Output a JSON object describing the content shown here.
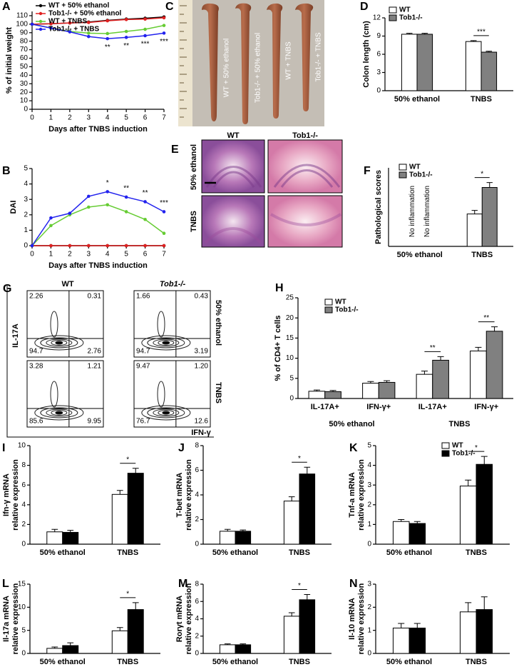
{
  "chart_data": [
    {
      "panel": "A",
      "type": "line",
      "x": [
        0,
        1,
        2,
        3,
        4,
        5,
        6,
        7
      ],
      "xlim": [
        0,
        7
      ],
      "xticks": [
        0,
        1,
        2,
        3,
        4,
        5,
        6,
        7
      ],
      "ylim": [
        0,
        115
      ],
      "yticks": [
        0,
        10,
        20,
        30,
        40,
        50,
        60,
        70,
        80,
        90,
        100,
        110
      ],
      "xlabel": "Days after TNBS induction",
      "ylabel": "% of initial weight",
      "legend": "upper left",
      "series": [
        {
          "name": "WT + 50% ethanol",
          "color": "#000000",
          "values": [
            100,
            100.5,
            101.5,
            102.5,
            104.5,
            106,
            107,
            108.5
          ]
        },
        {
          "name": "Tob1-/- + 50% ethanol",
          "color": "#e02020",
          "values": [
            100,
            100.5,
            101.5,
            102,
            104,
            105.5,
            106,
            107.5
          ]
        },
        {
          "name": "WT + TNBS",
          "color": "#66cc33",
          "values": [
            100,
            95.5,
            91.5,
            89.5,
            89,
            91.5,
            94,
            98.5
          ]
        },
        {
          "name": "Tob1-/- + TNBS",
          "color": "#2222ee",
          "values": [
            100,
            95.5,
            91,
            85.5,
            83,
            84.5,
            86.5,
            89.5
          ]
        }
      ],
      "annotations": [
        {
          "x": 4,
          "text": "**"
        },
        {
          "x": 5,
          "text": "**"
        },
        {
          "x": 6,
          "text": "***"
        },
        {
          "x": 7,
          "text": "***"
        }
      ]
    },
    {
      "panel": "B",
      "type": "line",
      "x": [
        0,
        1,
        2,
        3,
        4,
        5,
        6,
        7
      ],
      "xlim": [
        0,
        7
      ],
      "xticks": [
        0,
        1,
        2,
        3,
        4,
        5,
        6,
        7
      ],
      "ylim": [
        0,
        5
      ],
      "yticks": [
        0,
        1,
        2,
        3,
        4,
        5
      ],
      "xlabel": "Days after TNBS induction",
      "ylabel": "DAI",
      "series": [
        {
          "color": "#000000",
          "values": [
            0,
            0,
            0,
            0,
            0,
            0,
            0,
            0
          ]
        },
        {
          "color": "#e02020",
          "values": [
            0,
            0,
            0,
            0,
            0,
            0,
            0,
            0
          ]
        },
        {
          "color": "#66cc33",
          "values": [
            0,
            1.3,
            2,
            2.5,
            2.65,
            2.2,
            1.7,
            0.8
          ]
        },
        {
          "color": "#2222ee",
          "values": [
            0,
            1.8,
            2.1,
            3.2,
            3.5,
            3.15,
            2.85,
            2.2
          ]
        }
      ],
      "annotations": [
        {
          "x": 4,
          "text": "*"
        },
        {
          "x": 5,
          "text": "**"
        },
        {
          "x": 6,
          "text": "**"
        },
        {
          "x": 7,
          "text": "***"
        }
      ]
    },
    {
      "panel": "D",
      "type": "bar",
      "categories": [
        "50% ethanol",
        "TNBS"
      ],
      "ylim": [
        0,
        12
      ],
      "yticks": [
        0,
        3,
        6,
        9,
        12
      ],
      "ylabel": "Colon length (cm)",
      "legend": "upper left",
      "series": [
        {
          "name": "WT",
          "color": "#ffffff",
          "values": [
            9.3,
            8.1
          ],
          "errors": [
            0.15,
            0.15
          ]
        },
        {
          "name": "Tob1-/-",
          "color": "#808080",
          "values": [
            9.3,
            6.35
          ],
          "errors": [
            0.15,
            0.15
          ]
        }
      ],
      "annotations": [
        {
          "category": 1,
          "text": "***"
        }
      ]
    },
    {
      "panel": "F",
      "type": "bar",
      "categories": [
        "50% ethanol",
        "TNBS"
      ],
      "ylim": [
        0,
        4
      ],
      "ylabel": "Pathological scores",
      "legend": "upper left",
      "series": [
        {
          "name": "WT",
          "color": "#ffffff",
          "values": [
            null,
            1.65
          ],
          "errors": [
            null,
            0.18
          ]
        },
        {
          "name": "Tob1-/-",
          "color": "#808080",
          "values": [
            null,
            3.0
          ],
          "errors": [
            null,
            0.25
          ]
        }
      ],
      "notes": [
        {
          "category": 0,
          "text": "No inflammation"
        },
        {
          "category": 0,
          "text": "No inflammation"
        }
      ],
      "annotations": [
        {
          "category": 1,
          "text": "*"
        }
      ]
    },
    {
      "panel": "H",
      "type": "bar",
      "categories": [
        "IL-17A+",
        "IFN-γ+",
        "IL-17A+",
        "IFN-γ+"
      ],
      "group_labels": [
        "50% ethanol",
        "TNBS"
      ],
      "ylim": [
        0,
        25
      ],
      "yticks": [
        0,
        5,
        10,
        15,
        20,
        25
      ],
      "ylabel": "% of CD4+ T cells",
      "legend": "upper left",
      "series": [
        {
          "name": "WT",
          "color": "#ffffff",
          "values": [
            1.8,
            3.8,
            6.0,
            11.8
          ],
          "errors": [
            0.3,
            0.4,
            0.8,
            0.9
          ]
        },
        {
          "name": "Tob1-/-",
          "color": "#808080",
          "values": [
            1.7,
            4.0,
            9.5,
            16.7
          ],
          "errors": [
            0.3,
            0.4,
            0.9,
            1.1
          ]
        }
      ],
      "annotations": [
        {
          "category": 2,
          "text": "**"
        },
        {
          "category": 3,
          "text": "**"
        }
      ]
    },
    {
      "panel": "I",
      "type": "bar",
      "categories": [
        "50% ethanol",
        "TNBS"
      ],
      "ylim": [
        0,
        10
      ],
      "yticks": [
        0,
        2,
        4,
        6,
        8,
        10
      ],
      "ylabel": [
        "Ifn-γ mRNA",
        "relative expression"
      ],
      "series": [
        {
          "color": "#ffffff",
          "values": [
            1.25,
            5.05
          ],
          "errors": [
            0.25,
            0.4
          ]
        },
        {
          "color": "#000000",
          "values": [
            1.2,
            7.2
          ],
          "errors": [
            0.2,
            0.5
          ]
        }
      ],
      "annotations": [
        {
          "category": 1,
          "text": "*"
        }
      ]
    },
    {
      "panel": "J",
      "type": "bar",
      "categories": [
        "50% ethanol",
        "TNBS"
      ],
      "ylim": [
        0,
        8
      ],
      "yticks": [
        0,
        2,
        4,
        6,
        8
      ],
      "ylabel": [
        "T-bet mRNA",
        "relative expression"
      ],
      "series": [
        {
          "color": "#ffffff",
          "values": [
            1.05,
            3.5
          ],
          "errors": [
            0.15,
            0.35
          ]
        },
        {
          "color": "#000000",
          "values": [
            1.05,
            5.7
          ],
          "errors": [
            0.1,
            0.55
          ]
        }
      ],
      "annotations": [
        {
          "category": 1,
          "text": "*"
        }
      ]
    },
    {
      "panel": "K",
      "type": "bar",
      "categories": [
        "50% ethanol",
        "TNBS"
      ],
      "ylim": [
        0,
        5
      ],
      "yticks": [
        0,
        1,
        2,
        3,
        4,
        5
      ],
      "ylabel": [
        "Tnf-a mRNA",
        "relative expression"
      ],
      "legend": "upper right",
      "series": [
        {
          "name": "WT",
          "color": "#ffffff",
          "values": [
            1.15,
            2.95
          ],
          "errors": [
            0.1,
            0.3
          ]
        },
        {
          "name": "Tob1-/-",
          "color": "#000000",
          "values": [
            1.05,
            4.05
          ],
          "errors": [
            0.1,
            0.4
          ]
        }
      ],
      "annotations": [
        {
          "category": 1,
          "text": "*"
        }
      ]
    },
    {
      "panel": "L",
      "type": "bar",
      "categories": [
        "50% ethanol",
        "TNBS"
      ],
      "ylim": [
        0,
        15
      ],
      "yticks": [
        0,
        5,
        10,
        15
      ],
      "ylabel": [
        "Il-17a mRNA",
        "relative expression"
      ],
      "series": [
        {
          "color": "#ffffff",
          "values": [
            1.1,
            4.9
          ],
          "errors": [
            0.3,
            0.7
          ]
        },
        {
          "color": "#000000",
          "values": [
            1.7,
            9.5
          ],
          "errors": [
            0.6,
            1.5
          ]
        }
      ],
      "annotations": [
        {
          "category": 1,
          "text": "*"
        }
      ]
    },
    {
      "panel": "M",
      "type": "bar",
      "categories": [
        "50% ethanol",
        "TNBS"
      ],
      "ylim": [
        0,
        8
      ],
      "yticks": [
        0,
        2,
        4,
        6,
        8
      ],
      "ylabel": [
        "Rorγt mRNA",
        "relative expression"
      ],
      "series": [
        {
          "color": "#ffffff",
          "values": [
            1.0,
            4.3
          ],
          "errors": [
            0.1,
            0.4
          ]
        },
        {
          "color": "#000000",
          "values": [
            1.0,
            6.2
          ],
          "errors": [
            0.1,
            0.6
          ]
        }
      ],
      "annotations": [
        {
          "category": 1,
          "text": "*"
        }
      ]
    },
    {
      "panel": "N",
      "type": "bar",
      "categories": [
        "50% ethanol",
        "TNBS"
      ],
      "ylim": [
        0,
        3
      ],
      "yticks": [
        0,
        1,
        2,
        3
      ],
      "ylabel": [
        "Il-10 mRNA",
        "relative expression"
      ],
      "series": [
        {
          "color": "#ffffff",
          "values": [
            1.1,
            1.8
          ],
          "errors": [
            0.2,
            0.4
          ]
        },
        {
          "color": "#000000",
          "values": [
            1.1,
            1.9
          ],
          "errors": [
            0.2,
            0.55
          ]
        }
      ]
    }
  ],
  "photo": {
    "panel": "C",
    "labels": [
      "WT + 50% ethanol",
      "Tob1-/- + 50% ethanol",
      "WT + TNBS",
      "Tob1-/- + TNBS"
    ]
  },
  "histology": {
    "panel": "E",
    "columns": [
      "WT",
      "Tob1-/-"
    ],
    "rows": [
      "50% ethanol",
      "TNBS"
    ]
  },
  "flow": {
    "panel": "G",
    "columns": [
      "WT",
      "Tob1-/-"
    ],
    "rows": [
      "50% ethanol",
      "TNBS"
    ],
    "ylabel": "IL-17A",
    "xlabel": "IFN-γ",
    "quadrants": [
      [
        "2.26",
        "0.31",
        "94.7",
        "2.76"
      ],
      [
        "1.66",
        "0.43",
        "94.7",
        "3.19"
      ],
      [
        "3.28",
        "1.21",
        "85.6",
        "9.95"
      ],
      [
        "9.47",
        "1.20",
        "76.7",
        "12.6"
      ]
    ]
  }
}
